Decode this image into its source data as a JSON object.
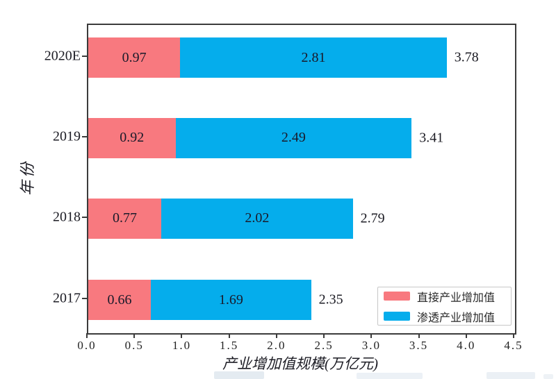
{
  "chart_data": {
    "type": "bar",
    "orientation": "horizontal",
    "stacked": true,
    "title": "",
    "xlabel": "产业增加值规模(万亿元)",
    "ylabel": "年份",
    "categories": [
      "2020E",
      "2019",
      "2018",
      "2017"
    ],
    "series": [
      {
        "name": "直接产业增加值",
        "color": "#F8797F",
        "values": [
          0.97,
          0.92,
          0.77,
          0.66
        ]
      },
      {
        "name": "渗透产业增加值",
        "color": "#05ADEC",
        "values": [
          2.81,
          2.49,
          2.02,
          1.69
        ]
      }
    ],
    "totals": [
      "3.78",
      "3.41",
      "2.79",
      "2.35"
    ],
    "segment_labels": [
      [
        "0.97",
        "2.81"
      ],
      [
        "0.92",
        "2.49"
      ],
      [
        "0.77",
        "2.02"
      ],
      [
        "0.66",
        "1.69"
      ]
    ],
    "xlim": [
      0,
      4.5
    ],
    "x_ticks": [
      "0.0",
      "0.5",
      "1.0",
      "1.5",
      "2.0",
      "2.5",
      "3.0",
      "3.5",
      "4.0",
      "4.5"
    ],
    "grid": false,
    "legend": {
      "position": "lower right",
      "entries": [
        {
          "label": "直接产业增加值",
          "color": "#F8797F"
        },
        {
          "label": "渗透产业增加值",
          "color": "#05ADEC"
        }
      ]
    }
  },
  "colors": {
    "direct_series": "#F8797F",
    "penetration_series": "#05ADEC",
    "spine": "#3b3b3b",
    "text": "#1c1c24",
    "legend_border": "#c7c7c7",
    "watermark": "#dde6ee"
  }
}
